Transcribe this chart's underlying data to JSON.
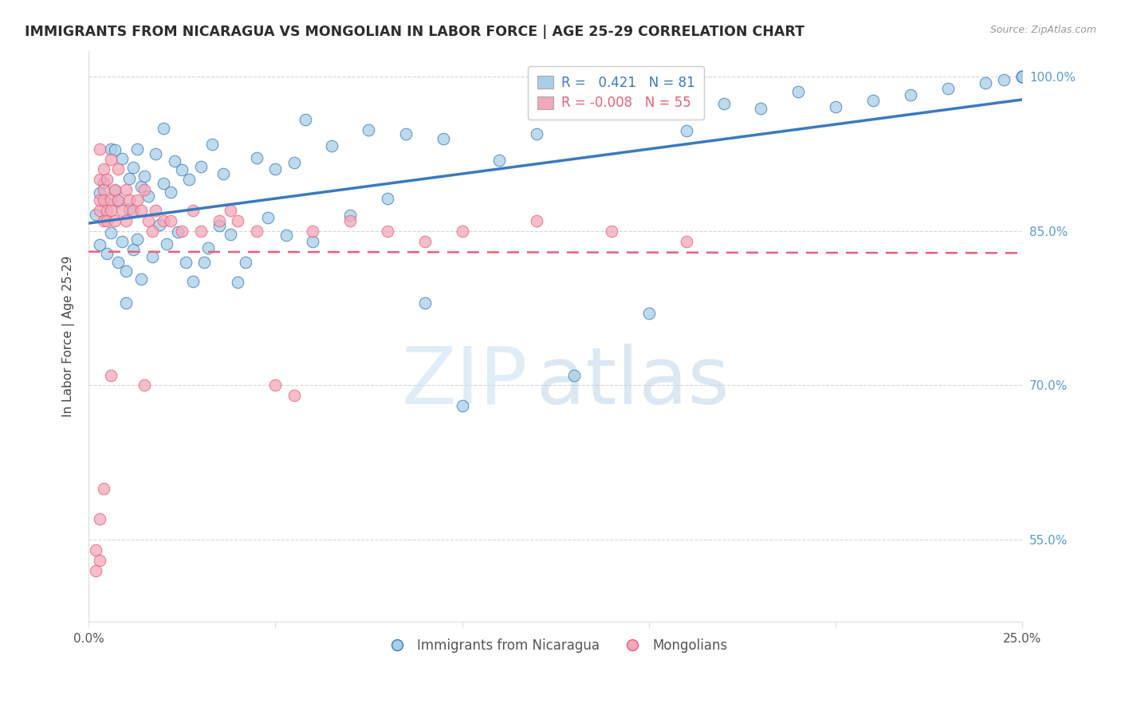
{
  "title": "IMMIGRANTS FROM NICARAGUA VS MONGOLIAN IN LABOR FORCE | AGE 25-29 CORRELATION CHART",
  "source": "Source: ZipAtlas.com",
  "ylabel": "In Labor Force | Age 25-29",
  "xlim": [
    0.0,
    0.25
  ],
  "ylim": [
    0.47,
    1.025
  ],
  "yticks_right": [
    0.55,
    0.7,
    0.85,
    1.0
  ],
  "ytick_right_labels": [
    "55.0%",
    "70.0%",
    "85.0%",
    "100.0%"
  ],
  "legend_blue_r": "0.421",
  "legend_blue_n": "81",
  "legend_pink_r": "-0.008",
  "legend_pink_n": "55",
  "legend_blue_label": "Immigrants from Nicaragua",
  "legend_pink_label": "Mongolians",
  "blue_color": "#a8cfe8",
  "pink_color": "#f4a7b9",
  "blue_line_color": "#3a7abf",
  "pink_line_color": "#e8607a",
  "watermark_zip": "ZIP",
  "watermark_atlas": "atlas",
  "background_color": "#ffffff",
  "grid_color": "#cccccc",
  "title_color": "#2d2d2d",
  "axis_label_color": "#444444",
  "right_tick_color": "#5b9bd5"
}
